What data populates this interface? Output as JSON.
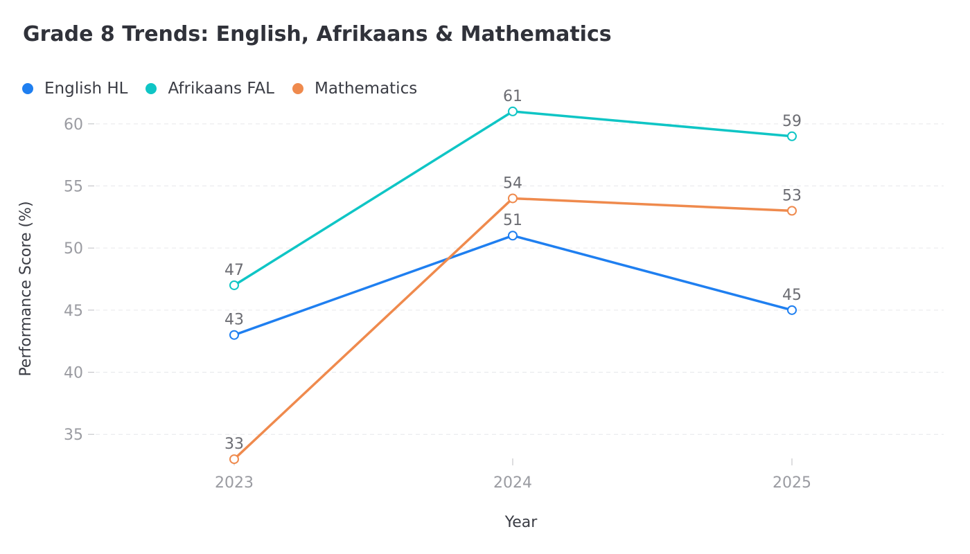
{
  "chart_data": {
    "type": "line",
    "title": "Grade 8 Trends: English, Afrikaans & Mathematics",
    "xlabel": "Year",
    "ylabel": "Performance Score (%)",
    "categories": [
      "2023",
      "2024",
      "2025"
    ],
    "yticks": [
      35,
      40,
      45,
      50,
      55,
      60
    ],
    "ylim": [
      32,
      62.5
    ],
    "grid": true,
    "legend_position": "top-left",
    "series": [
      {
        "name": "English HL",
        "color": "#1f7ff0",
        "values": [
          43,
          51,
          45
        ]
      },
      {
        "name": "Afrikaans FAL",
        "color": "#0fc5c5",
        "values": [
          47,
          61,
          59
        ]
      },
      {
        "name": "Mathematics",
        "color": "#ef8a4d",
        "values": [
          33,
          54,
          53
        ]
      }
    ]
  }
}
